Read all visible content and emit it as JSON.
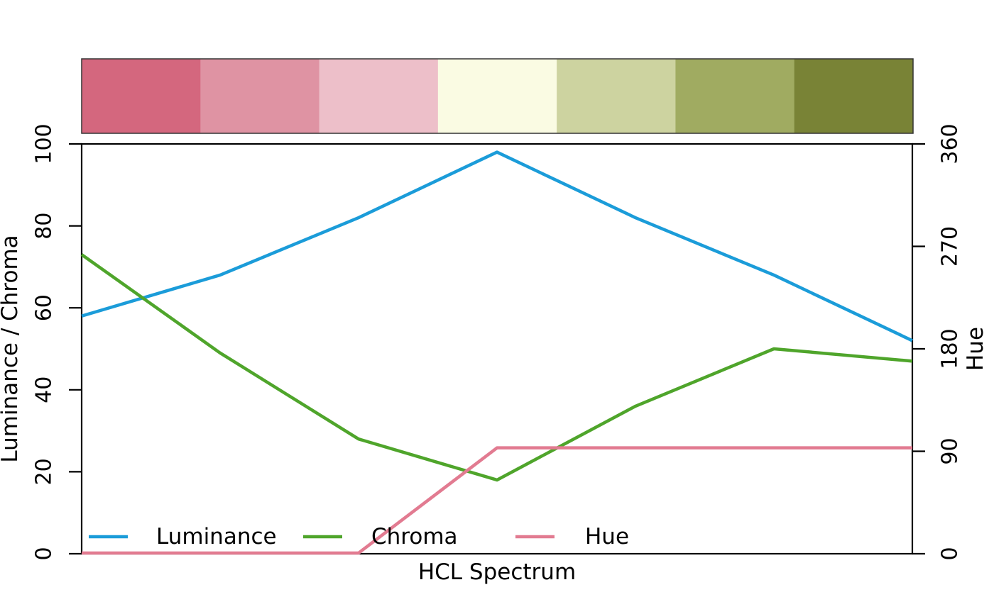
{
  "figure": {
    "background": "#ffffff",
    "axis_color": "#000000",
    "bar_border_color": "#333333"
  },
  "chart_data": {
    "type": "line",
    "title": "",
    "xlabel": "HCL Spectrum",
    "ylabel_left": "Luminance / Chroma",
    "ylabel_right": "Hue",
    "grid": false,
    "legend_position": "bottom-left-inside",
    "x": [
      1,
      2,
      3,
      4,
      5,
      6,
      7
    ],
    "xlim": [
      1,
      7
    ],
    "ylim_left": [
      0,
      100
    ],
    "ylim_right": [
      0,
      360
    ],
    "y_left_ticks": [
      "0",
      "20",
      "40",
      "60",
      "80",
      "100"
    ],
    "y_left_tick_values": [
      0,
      20,
      40,
      60,
      80,
      100
    ],
    "y_right_ticks": [
      "0",
      "90",
      "180",
      "270",
      "360"
    ],
    "y_right_tick_values": [
      0,
      90,
      180,
      270,
      360
    ],
    "series": [
      {
        "name": "Luminance",
        "axis": "left",
        "color": "#1B9CD9",
        "values": [
          58,
          68,
          82,
          98,
          82,
          68,
          52
        ]
      },
      {
        "name": "Chroma",
        "axis": "left",
        "color": "#4FA52B",
        "values": [
          73,
          49,
          28,
          18,
          36,
          50,
          47
        ]
      },
      {
        "name": "Hue",
        "axis": "right",
        "color": "#E27B91",
        "values": [
          0,
          0,
          0,
          93,
          93,
          93,
          93
        ]
      }
    ],
    "palette_swatches": [
      "#D4677E",
      "#DF93A3",
      "#EDBFC9",
      "#FAFBE3",
      "#CDD3A0",
      "#A0AB61",
      "#798336"
    ]
  }
}
